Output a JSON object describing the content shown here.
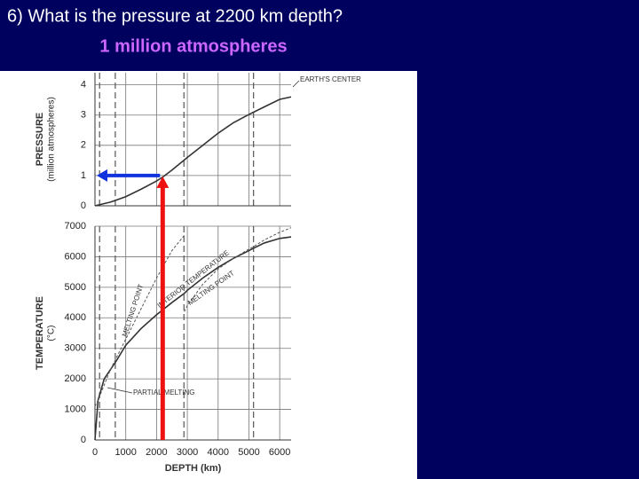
{
  "slide": {
    "question": "6) What is the pressure at 2200 km depth?",
    "answer": "1 million atmospheres"
  },
  "arrows": {
    "depth": 2200,
    "pressure": 1
  },
  "chart_data": [
    {
      "type": "line",
      "ylabel": "PRESSURE",
      "ylabel2": "(million atmospheres)",
      "x": [
        0,
        500,
        1000,
        1500,
        2000,
        2200,
        2500,
        3000,
        3500,
        4000,
        4500,
        5000,
        5500,
        6000,
        6370
      ],
      "series": [
        {
          "name": "Pressure",
          "color": "#333333",
          "dash": false,
          "values": [
            0,
            0.12,
            0.3,
            0.55,
            0.82,
            0.95,
            1.18,
            1.6,
            2.0,
            2.4,
            2.75,
            3.02,
            3.27,
            3.52,
            3.6
          ]
        }
      ],
      "boundaries": [
        150,
        660,
        2890,
        5150
      ],
      "xlim": [
        0,
        6370
      ],
      "ylim": [
        0,
        4.4
      ],
      "yticks": [
        0,
        1,
        2,
        3,
        4
      ],
      "grid": true,
      "annotations": [
        "EARTH'S CENTER"
      ]
    },
    {
      "type": "line",
      "ylabel": "TEMPERATURE",
      "ylabel2": "(°C)",
      "xlabel": "DEPTH (km)",
      "x": [
        0,
        100,
        300,
        500,
        700,
        1000,
        1500,
        2000,
        2500,
        2900,
        3000,
        3500,
        4000,
        4500,
        5000,
        5150,
        5500,
        6000,
        6370
      ],
      "series": [
        {
          "name": "Interior temperature",
          "color": "#333333",
          "dash": false,
          "values": [
            0,
            1300,
            2000,
            2300,
            2600,
            3100,
            3650,
            4100,
            4500,
            4800,
            4900,
            5300,
            5650,
            5950,
            6200,
            6280,
            6450,
            6600,
            6650
          ]
        },
        {
          "name": "Melting point",
          "color": "#555555",
          "dash": true,
          "values": [
            1100,
            1300,
            1800,
            2300,
            2700,
            3300,
            4300,
            5300,
            6200,
            6700,
            null,
            null,
            null,
            null,
            null,
            null,
            null,
            null,
            null
          ]
        },
        {
          "name": "Melting point (core)",
          "color": "#555555",
          "dash": true,
          "values": [
            null,
            null,
            null,
            null,
            null,
            null,
            null,
            null,
            null,
            4200,
            4400,
            5100,
            5600,
            5950,
            6250,
            6330,
            6550,
            6800,
            6950
          ]
        }
      ],
      "boundaries": [
        150,
        660,
        2890,
        5150
      ],
      "xlim": [
        0,
        6370
      ],
      "ylim": [
        0,
        7000
      ],
      "xticks": [
        0,
        1000,
        2000,
        3000,
        4000,
        5000,
        6000
      ],
      "yticks": [
        0,
        1000,
        2000,
        3000,
        4000,
        5000,
        6000,
        7000
      ],
      "grid": true,
      "annotations": [
        "MELTING POINT",
        "INTERIOR TEMPERATURE",
        "MELTING POINT",
        "PARTIAL MELTING"
      ]
    }
  ]
}
